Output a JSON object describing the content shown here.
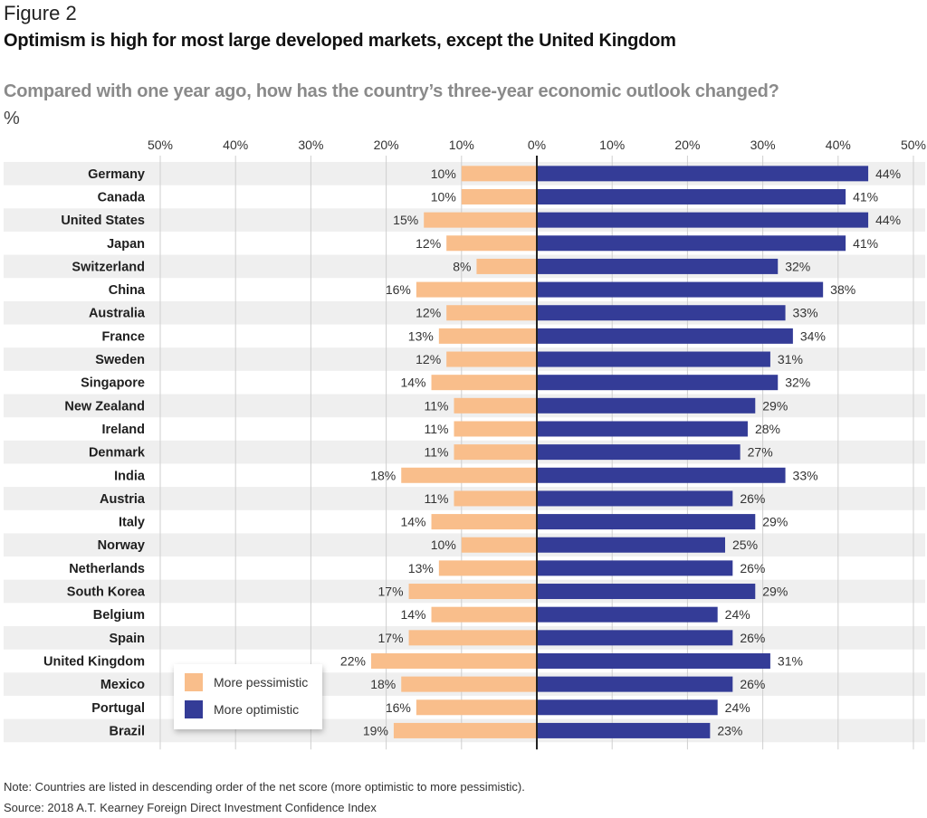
{
  "figure_label": "Figure 2",
  "title": "Optimism is high for most large developed markets, except the United Kingdom",
  "subtitle": "Compared with one year ago, how has the country’s three-year economic outlook changed?",
  "unit": "%",
  "note": "Note: Countries are listed in descending order of the net score (more optimistic to more pessimistic).",
  "source": "Source: 2018 A.T. Kearney Foreign Direct Investment Confidence Index",
  "colors": {
    "pessimistic": "#f9be8b",
    "optimistic": "#343c97",
    "stripe": "#efefef",
    "grid": "#cfcfcf",
    "axis": "#222222"
  },
  "chart_data": {
    "type": "bar",
    "orientation": "horizontal-diverging",
    "title": "Optimism is high for most large developed markets, except the United Kingdom",
    "subtitle": "Compared with one year ago, how has the country’s three-year economic outlook changed?",
    "xlabel": "%",
    "ylabel": "",
    "xlim": [
      -50,
      50
    ],
    "x_ticks": [
      -50,
      -40,
      -30,
      -20,
      -10,
      0,
      10,
      20,
      30,
      40,
      50
    ],
    "x_tick_labels": [
      "50%",
      "40%",
      "30%",
      "20%",
      "10%",
      "0%",
      "10%",
      "20%",
      "30%",
      "40%",
      "50%"
    ],
    "grid": true,
    "legend_position": "bottom-left",
    "categories": [
      "Germany",
      "Canada",
      "United States",
      "Japan",
      "Switzerland",
      "China",
      "Australia",
      "France",
      "Sweden",
      "Singapore",
      "New Zealand",
      "Ireland",
      "Denmark",
      "India",
      "Austria",
      "Italy",
      "Norway",
      "Netherlands",
      "South Korea",
      "Belgium",
      "Spain",
      "United Kingdom",
      "Mexico",
      "Portugal",
      "Brazil"
    ],
    "series": [
      {
        "name": "More pessimistic",
        "direction": "left",
        "values": [
          10,
          10,
          15,
          12,
          8,
          16,
          12,
          13,
          12,
          14,
          11,
          11,
          11,
          18,
          11,
          14,
          10,
          13,
          17,
          14,
          17,
          22,
          18,
          16,
          19
        ]
      },
      {
        "name": "More optimistic",
        "direction": "right",
        "values": [
          44,
          41,
          44,
          41,
          32,
          38,
          33,
          34,
          31,
          32,
          29,
          28,
          27,
          33,
          26,
          29,
          25,
          26,
          29,
          24,
          26,
          31,
          26,
          24,
          23
        ]
      }
    ],
    "value_label_suffix": "%"
  }
}
